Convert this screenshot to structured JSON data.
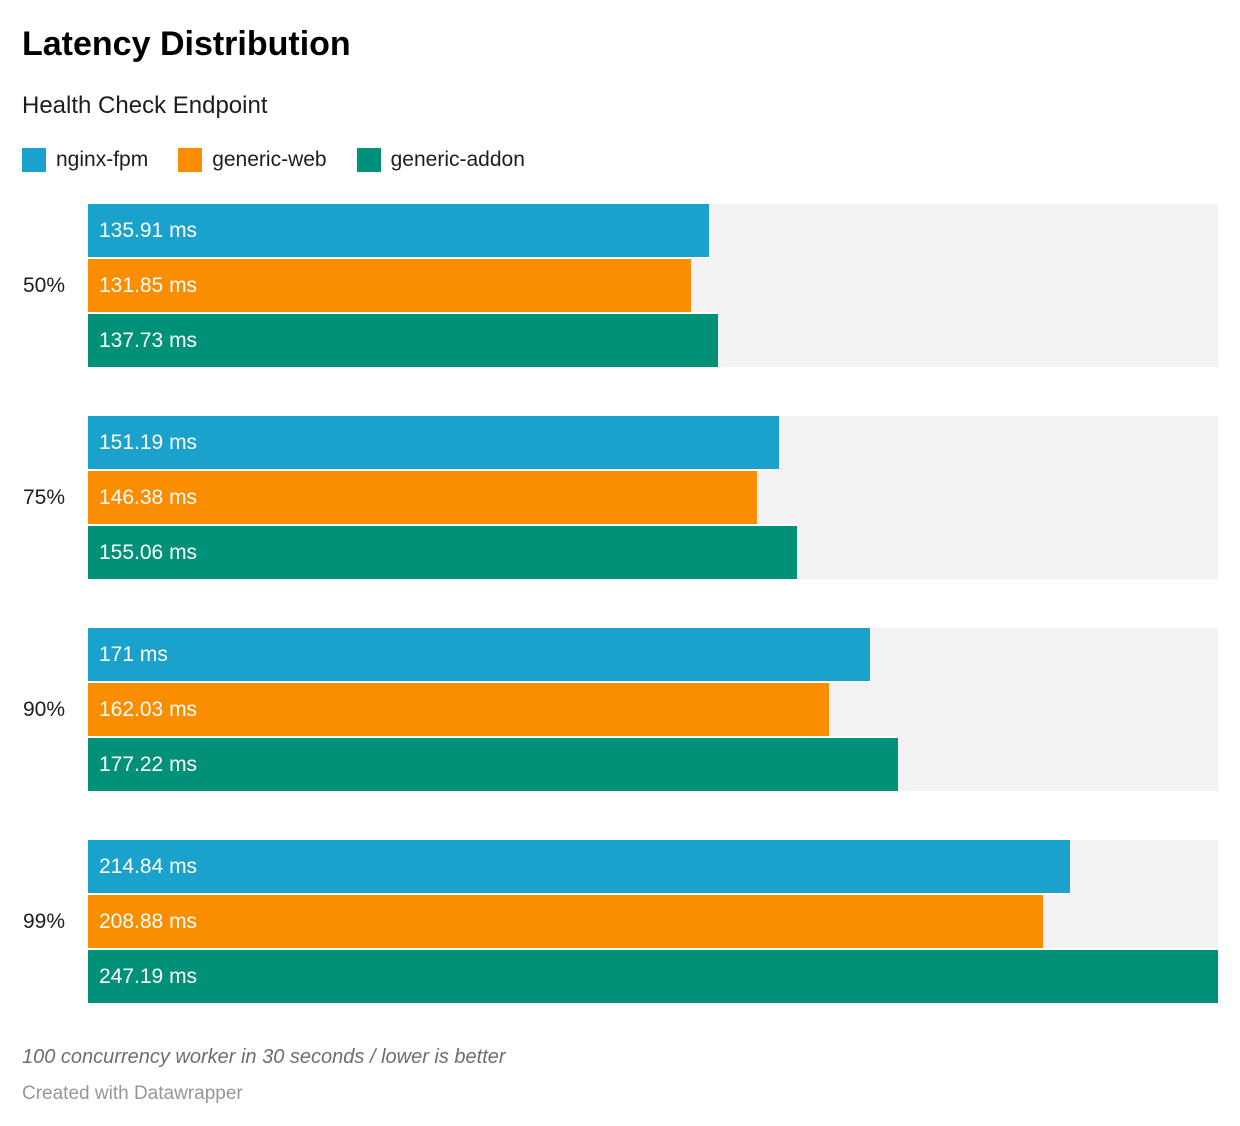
{
  "header": {
    "title": "Latency Distribution",
    "subtitle": "Health Check Endpoint"
  },
  "legend": [
    {
      "label": "nginx-fpm",
      "color": "#1aa2cc"
    },
    {
      "label": "generic-web",
      "color": "#fa8e00"
    },
    {
      "label": "generic-addon",
      "color": "#009178"
    }
  ],
  "chart_data": {
    "type": "bar",
    "orientation": "horizontal",
    "title": "Latency Distribution",
    "subtitle": "Health Check Endpoint",
    "unit": "ms",
    "categories": [
      "50%",
      "75%",
      "90%",
      "99%"
    ],
    "series": [
      {
        "name": "nginx-fpm",
        "color": "#1aa2cc",
        "values": [
          135.91,
          151.19,
          171,
          214.84
        ],
        "labels": [
          "135.91 ms",
          "151.19 ms",
          "171 ms",
          "214.84 ms"
        ]
      },
      {
        "name": "generic-web",
        "color": "#fa8e00",
        "values": [
          131.85,
          146.38,
          162.03,
          208.88
        ],
        "labels": [
          "131.85 ms",
          "146.38 ms",
          "162.03 ms",
          "208.88 ms"
        ]
      },
      {
        "name": "generic-addon",
        "color": "#009178",
        "values": [
          137.73,
          155.06,
          177.22,
          247.19
        ],
        "labels": [
          "137.73 ms",
          "155.06 ms",
          "177.22 ms",
          "247.19 ms"
        ]
      }
    ],
    "xmin": 0,
    "xmax": 247.19,
    "track_color": "#f2f2f2",
    "value_labels_inside_bars": true,
    "legend_position": "top"
  },
  "footer": {
    "note": "100 concurrency worker in 30 seconds / lower is better",
    "attribution": "Created with Datawrapper"
  }
}
